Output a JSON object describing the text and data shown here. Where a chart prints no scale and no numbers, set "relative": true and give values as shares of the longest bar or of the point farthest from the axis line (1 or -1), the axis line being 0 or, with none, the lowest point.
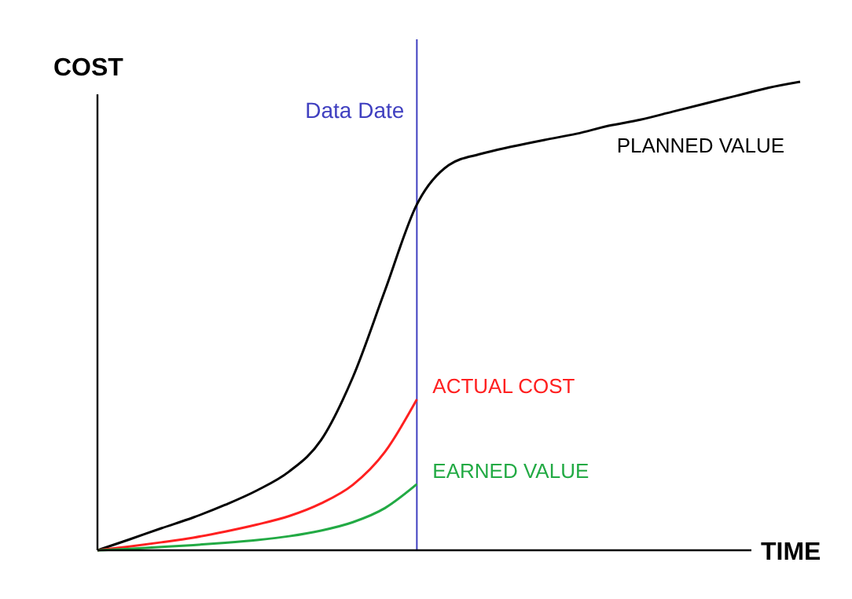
{
  "chart_data": {
    "type": "line",
    "relative": true,
    "xlabel": "TIME",
    "ylabel": "COST",
    "grid": false,
    "legend": false,
    "line_style": "solid",
    "annotations": [
      "Data Date"
    ],
    "categories": [
      null,
      null,
      null,
      null,
      null,
      null,
      null,
      null,
      null,
      null,
      null,
      null,
      null,
      null,
      null,
      null,
      null,
      null,
      null,
      null,
      null,
      null,
      null
    ],
    "series": [
      {
        "name": "PLANNED VALUE",
        "color": "#000000",
        "values": [
          0,
          0.023,
          0.047,
          0.07,
          0.097,
          0.128,
          0.168,
          0.235,
          0.37,
          0.554,
          0.738,
          0.822,
          0.846,
          0.862,
          0.876,
          0.889,
          0.906,
          0.919,
          0.936,
          0.953,
          0.97,
          0.987,
          1.0
        ]
      },
      {
        "name": "ACTUAL COST",
        "color": "#ff2020",
        "values": [
          0,
          0.008,
          0.017,
          0.027,
          0.04,
          0.055,
          0.073,
          0.1,
          0.14,
          0.21,
          0.322,
          null,
          null,
          null,
          null,
          null,
          null,
          null,
          null,
          null,
          null,
          null,
          null
        ]
      },
      {
        "name": "EARNED VALUE",
        "color": "#22aa44",
        "values": [
          0,
          0.003,
          0.007,
          0.011,
          0.016,
          0.022,
          0.03,
          0.042,
          0.06,
          0.09,
          0.141,
          null,
          null,
          null,
          null,
          null,
          null,
          null,
          null,
          null,
          null,
          null,
          null
        ]
      }
    ]
  }
}
